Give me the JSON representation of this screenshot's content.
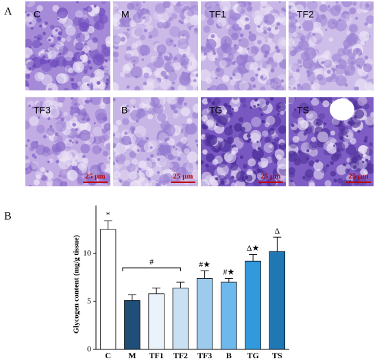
{
  "panel_a": {
    "label": "A",
    "images": [
      {
        "label": "C"
      },
      {
        "label": "M"
      },
      {
        "label": "TF1"
      },
      {
        "label": "TF2"
      },
      {
        "label": "TF3"
      },
      {
        "label": "B"
      },
      {
        "label": "TG"
      },
      {
        "label": "TS"
      }
    ],
    "scale_bar": "25 μm"
  },
  "chart_data": {
    "type": "bar",
    "panel_label": "B",
    "ylabel": "Glycogen content (mg/g tissue)",
    "categories": [
      "C",
      "M",
      "TF1",
      "TF2",
      "TF3",
      "B",
      "TG",
      "TS"
    ],
    "values": [
      12.5,
      5.1,
      5.8,
      6.4,
      7.4,
      7.0,
      9.2,
      10.2
    ],
    "errors": [
      0.9,
      0.6,
      0.6,
      0.6,
      0.8,
      0.4,
      0.7,
      1.5
    ],
    "colors": [
      "#ffffff",
      "#1f4e79",
      "#eaf3fb",
      "#c9e0f3",
      "#9dcbee",
      "#6db8ec",
      "#3199dc",
      "#1f78b4"
    ],
    "annotations": [
      "*",
      null,
      null,
      null,
      "#★",
      "#★",
      "Δ★",
      "Δ"
    ],
    "bracket_label": "#",
    "ylim": [
      0,
      15
    ],
    "yticks": [
      0,
      5,
      10
    ]
  }
}
